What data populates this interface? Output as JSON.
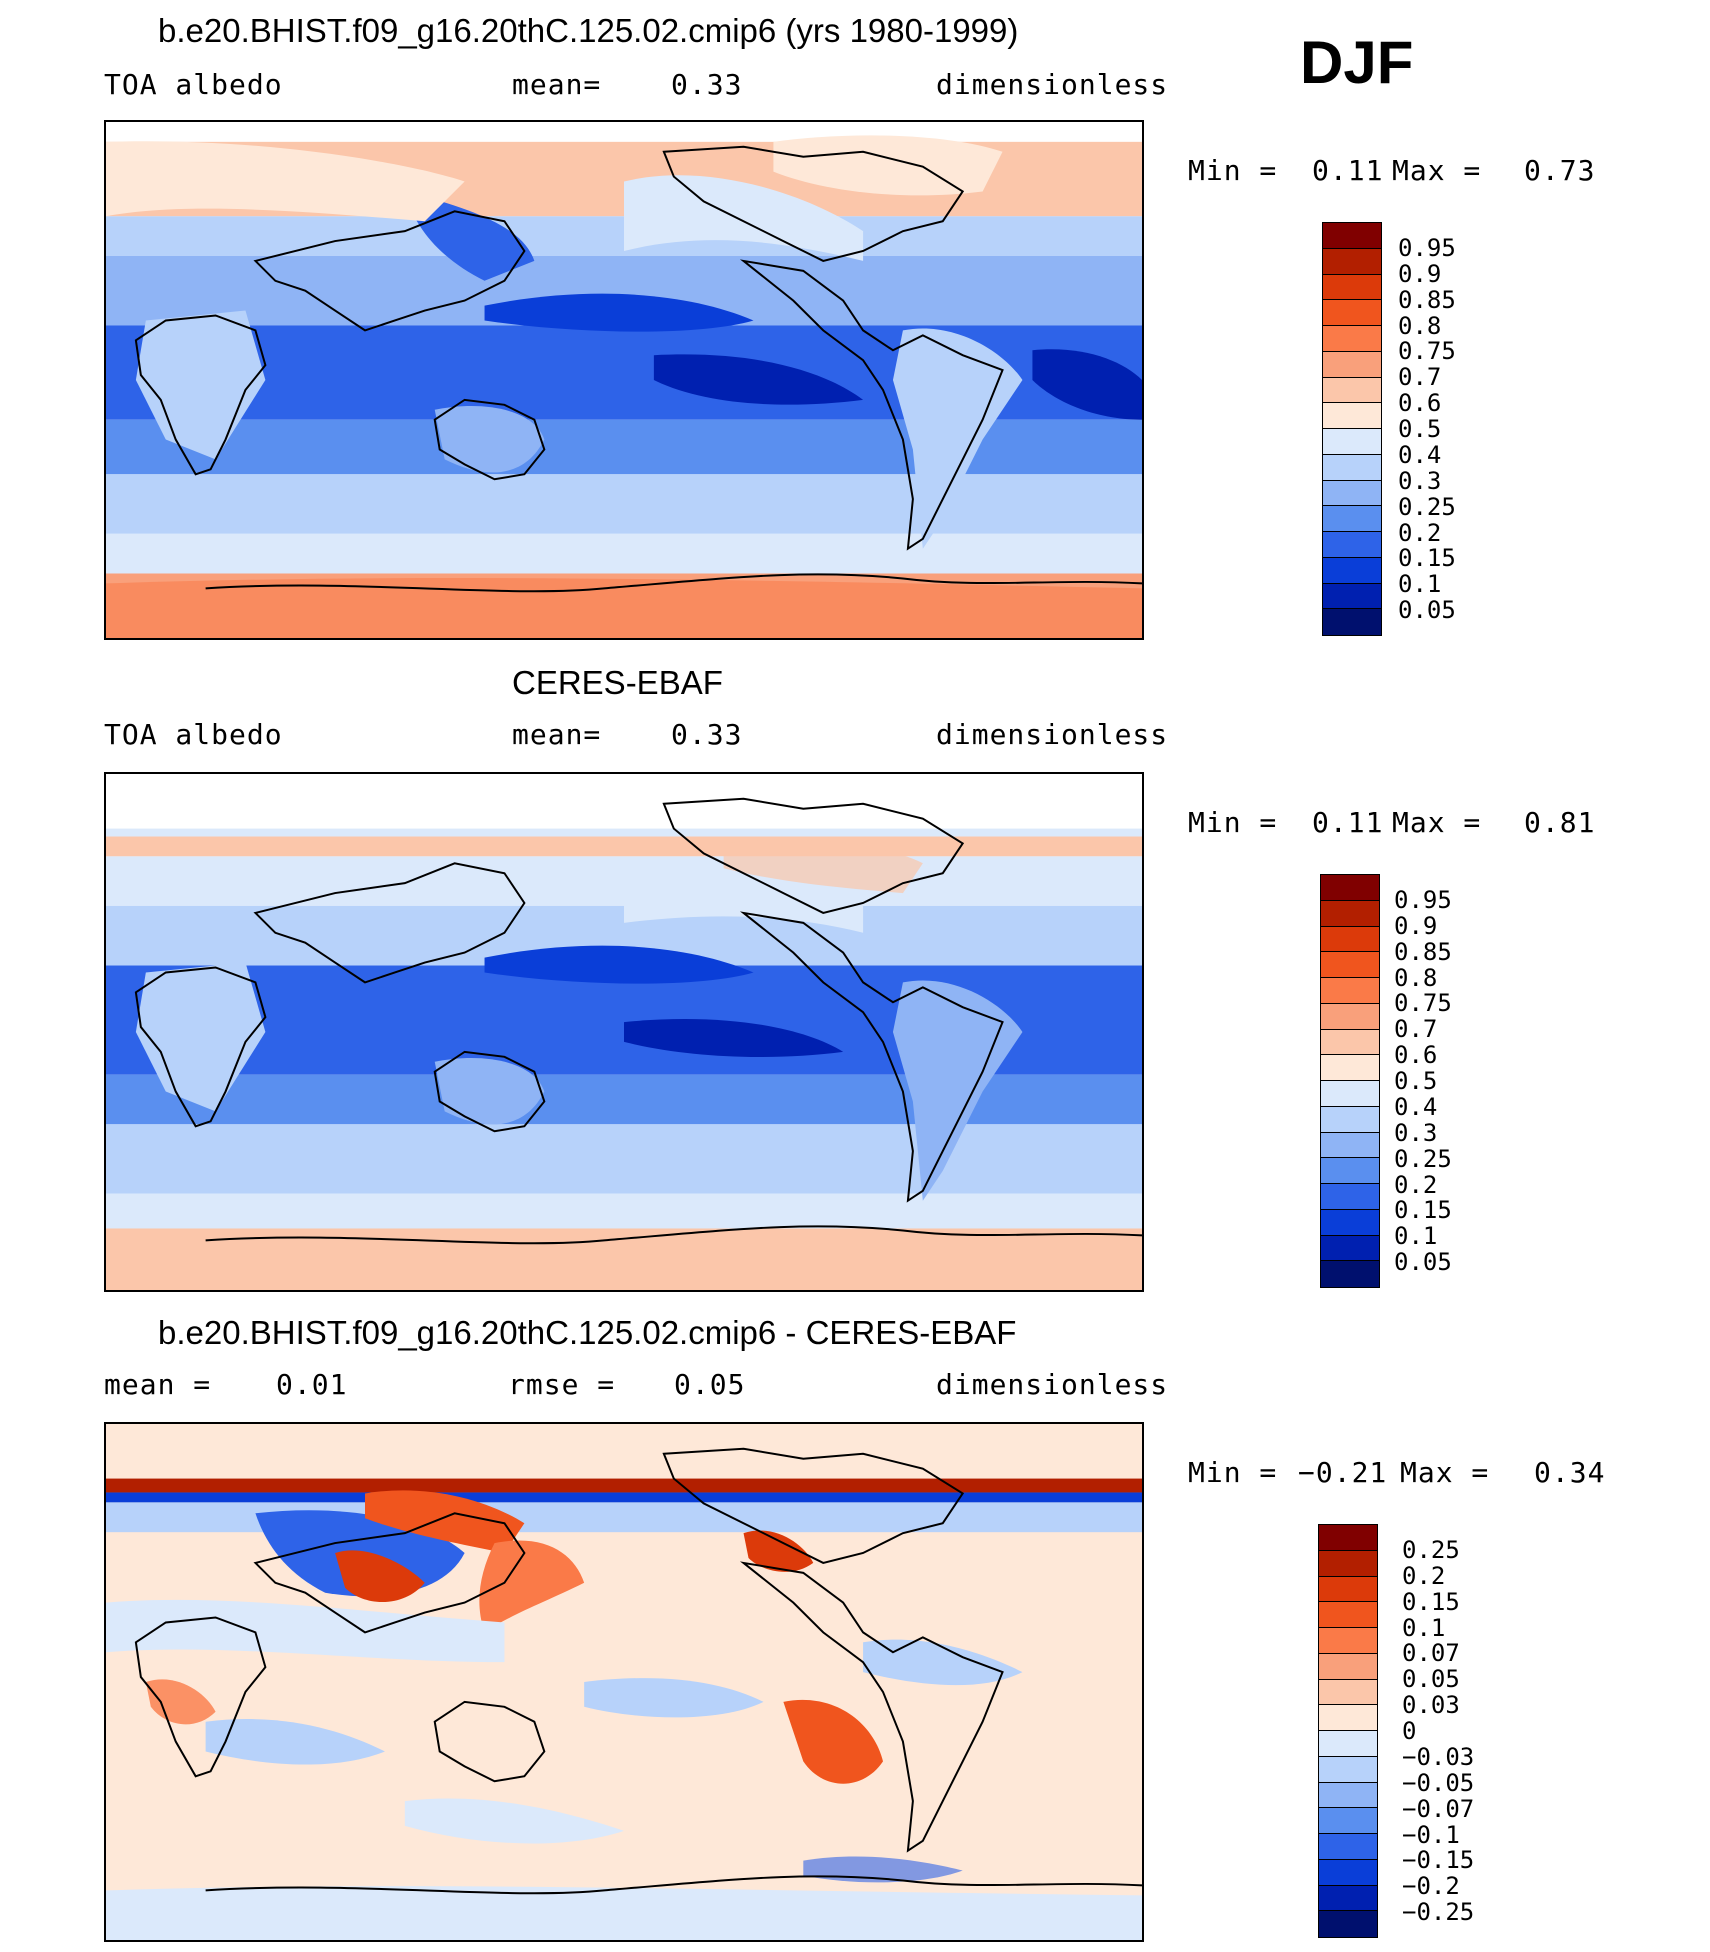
{
  "season": "DJF",
  "panels": [
    {
      "title": "b.e20.BHIST.f09_g16.20thC.125.02.cmip6 (yrs 1980-1999)",
      "left_label": "TOA albedo",
      "center_label": "mean=",
      "center_value": "0.33",
      "right_label": "dimensionless",
      "min_label": "Min =",
      "min_value": "0.11",
      "max_label": "Max =",
      "max_value": "0.73",
      "colorbar": {
        "labels": [
          "0.95",
          "0.9",
          "0.85",
          "0.8",
          "0.75",
          "0.7",
          "0.6",
          "0.5",
          "0.4",
          "0.3",
          "0.25",
          "0.2",
          "0.15",
          "0.1",
          "0.05"
        ],
        "colors": [
          "#800000",
          "#b21f00",
          "#dc3a0a",
          "#f0551e",
          "#fa7a48",
          "#f9a07b",
          "#fbc6aa",
          "#fee8d8",
          "#dbe9fb",
          "#b7d2fa",
          "#8fb4f5",
          "#5a8fef",
          "#2e63e8",
          "#0a3ed8",
          "#0020b0",
          "#00106e"
        ]
      },
      "chart_data": {
        "type": "heatmap",
        "title": "b.e20.BHIST.f09_g16.20thC.125.02.cmip6 (yrs 1980-1999)",
        "variable": "TOA albedo",
        "units": "dimensionless",
        "mean": 0.33,
        "min": 0.11,
        "max": 0.73,
        "levels": [
          0.05,
          0.1,
          0.15,
          0.2,
          0.25,
          0.3,
          0.4,
          0.5,
          0.6,
          0.7,
          0.75,
          0.8,
          0.85,
          0.9,
          0.95
        ]
      }
    },
    {
      "title": "CERES-EBAF",
      "left_label": "TOA albedo",
      "center_label": "mean=",
      "center_value": "0.33",
      "right_label": "dimensionless",
      "min_label": "Min =",
      "min_value": "0.11",
      "max_label": "Max =",
      "max_value": "0.81",
      "colorbar": {
        "labels": [
          "0.95",
          "0.9",
          "0.85",
          "0.8",
          "0.75",
          "0.7",
          "0.6",
          "0.5",
          "0.4",
          "0.3",
          "0.25",
          "0.2",
          "0.15",
          "0.1",
          "0.05"
        ],
        "colors": [
          "#800000",
          "#b21f00",
          "#dc3a0a",
          "#f0551e",
          "#fa7a48",
          "#f9a07b",
          "#fbc6aa",
          "#fee8d8",
          "#dbe9fb",
          "#b7d2fa",
          "#8fb4f5",
          "#5a8fef",
          "#2e63e8",
          "#0a3ed8",
          "#0020b0",
          "#00106e"
        ]
      },
      "chart_data": {
        "type": "heatmap",
        "title": "CERES-EBAF",
        "variable": "TOA albedo",
        "units": "dimensionless",
        "mean": 0.33,
        "min": 0.11,
        "max": 0.81,
        "levels": [
          0.05,
          0.1,
          0.15,
          0.2,
          0.25,
          0.3,
          0.4,
          0.5,
          0.6,
          0.7,
          0.75,
          0.8,
          0.85,
          0.9,
          0.95
        ]
      }
    },
    {
      "title": "b.e20.BHIST.f09_g16.20thC.125.02.cmip6 - CERES-EBAF",
      "left_label": "mean =",
      "left_value": "0.01",
      "center_label": "rmse =",
      "center_value": "0.05",
      "right_label": "dimensionless",
      "min_label": "Min =",
      "min_value": "−0.21",
      "max_label": "Max =",
      "max_value": "0.34",
      "colorbar": {
        "labels": [
          "0.25",
          "0.2",
          "0.15",
          "0.1",
          "0.07",
          "0.05",
          "0.03",
          "0",
          "−0.03",
          "−0.05",
          "−0.07",
          "−0.1",
          "−0.15",
          "−0.2",
          "−0.25"
        ],
        "colors": [
          "#800000",
          "#b21f00",
          "#dc3a0a",
          "#f0551e",
          "#fa7a48",
          "#f9a07b",
          "#fbc6aa",
          "#fee8d8",
          "#dbe9fb",
          "#b7d2fa",
          "#8fb4f5",
          "#5a8fef",
          "#2e63e8",
          "#0a3ed8",
          "#0020b0",
          "#00106e"
        ]
      },
      "chart_data": {
        "type": "heatmap",
        "title": "b.e20.BHIST.f09_g16.20thC.125.02.cmip6 - CERES-EBAF",
        "units": "dimensionless",
        "mean": 0.01,
        "rmse": 0.05,
        "min": -0.21,
        "max": 0.34,
        "levels": [
          -0.25,
          -0.2,
          -0.15,
          -0.1,
          -0.07,
          -0.05,
          -0.03,
          0,
          0.03,
          0.05,
          0.07,
          0.1,
          0.15,
          0.2,
          0.25
        ]
      }
    }
  ]
}
